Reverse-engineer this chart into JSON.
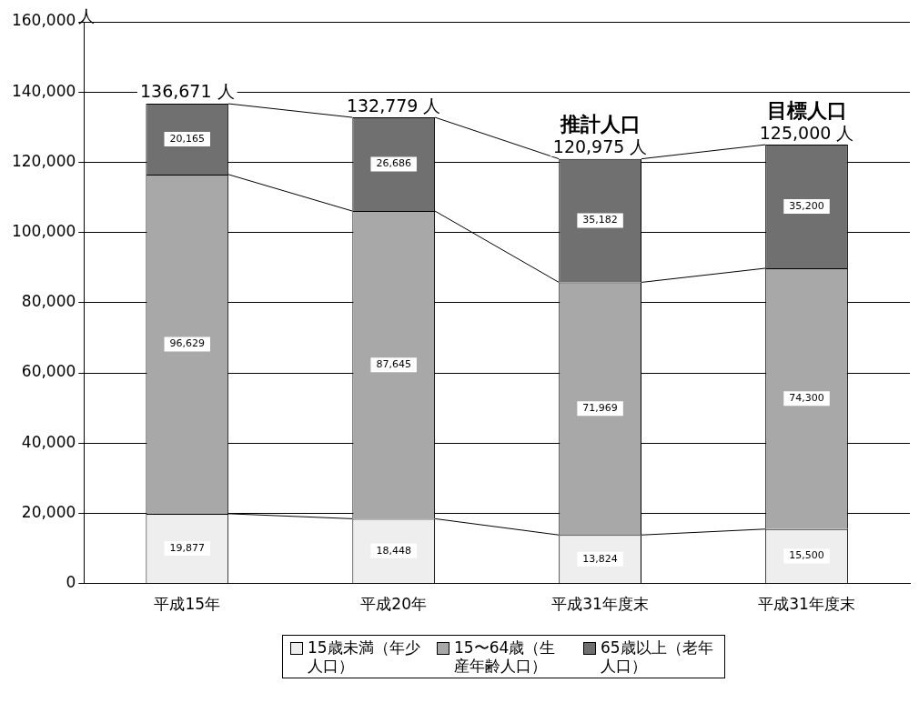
{
  "chart_data": {
    "type": "bar",
    "stacked": true,
    "ylabel": "人",
    "categories": [
      "平成15年",
      "平成20年",
      "平成31年度末",
      "平成31年度末"
    ],
    "series": [
      {
        "name": "15歳未満（年少人口）",
        "color": "#eeeeee",
        "values": [
          19877,
          18448,
          13824,
          15500
        ],
        "value_labels": [
          "19,877",
          "18,448",
          "13,824",
          "15,500"
        ]
      },
      {
        "name": "15〜64歳（生産年齢人口）",
        "color": "#a8a8a8",
        "values": [
          96629,
          87645,
          71969,
          74300
        ],
        "value_labels": [
          "96,629",
          "87,645",
          "71,969",
          "74,300"
        ]
      },
      {
        "name": "65歳以上（老年人口）",
        "color": "#707070",
        "values": [
          20165,
          26686,
          35182,
          35200
        ],
        "value_labels": [
          "20,165",
          "26,686",
          "35,182",
          "35,200"
        ]
      }
    ],
    "totals": [
      "136,671 人",
      "132,779 人",
      "120,975 人",
      "125,000 人"
    ],
    "annotations": [
      {
        "text": "推計人口",
        "x": "平成31年度末",
        "y": 120975
      },
      {
        "text": "目標人口",
        "y": 125000
      }
    ],
    "ylim": [
      0,
      160000
    ],
    "yticks": [
      {
        "value": 0,
        "label": "0"
      },
      {
        "value": 20000,
        "label": "20,000"
      },
      {
        "value": 40000,
        "label": "40,000"
      },
      {
        "value": 60000,
        "label": "60,000"
      },
      {
        "value": 80000,
        "label": "80,000"
      },
      {
        "value": 100000,
        "label": "100,000"
      },
      {
        "value": 120000,
        "label": "120,000"
      },
      {
        "value": 140000,
        "label": "140,000"
      },
      {
        "value": 160000,
        "label": "160,000"
      }
    ],
    "grid": "y",
    "legend": "bottom"
  }
}
